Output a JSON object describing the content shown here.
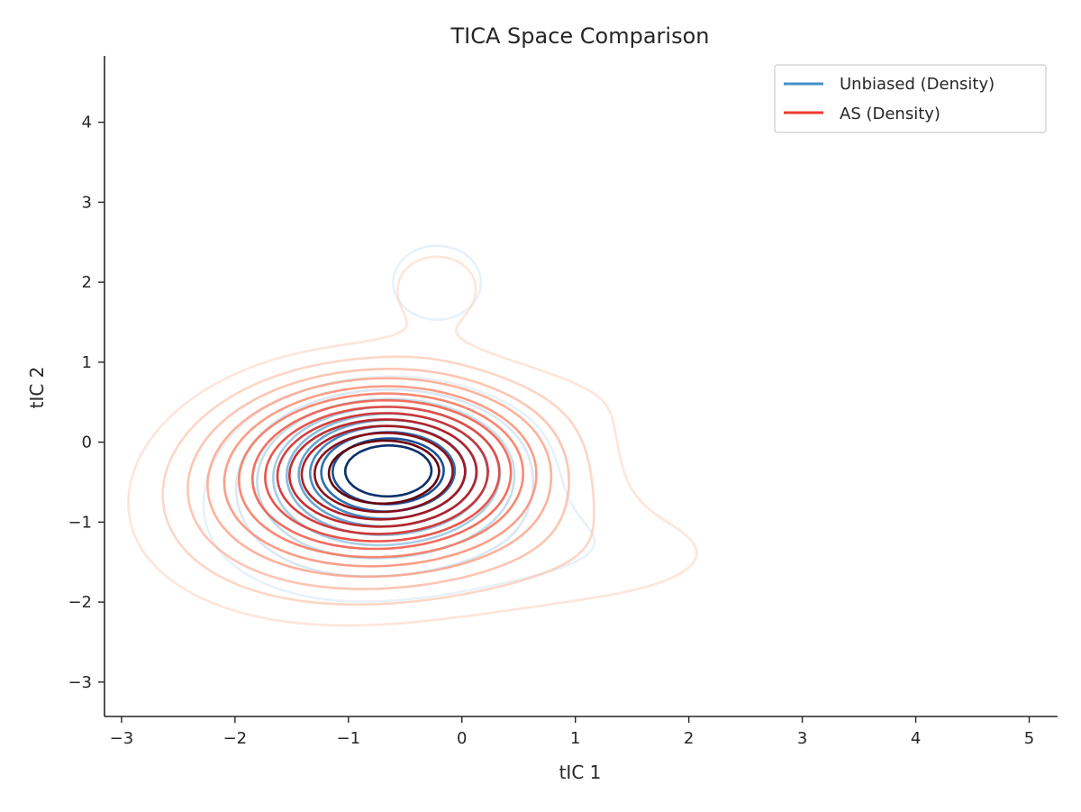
{
  "chart_data": {
    "type": "contour",
    "title": "TICA Space Comparison",
    "xlabel": "tIC 1",
    "ylabel": "tIC 2",
    "xlim": [
      -3.15,
      5.25
    ],
    "ylim": [
      -3.43,
      4.83
    ],
    "xticks": [
      -3,
      -2,
      -1,
      0,
      1,
      2,
      3,
      4,
      5
    ],
    "yticks": [
      -3,
      -2,
      -1,
      0,
      1,
      2,
      3,
      4
    ],
    "grid": false,
    "legend_position": "upper-right",
    "series": [
      {
        "name": "Unbiased (Density)",
        "color": "#4292c6",
        "colormap": "Blues",
        "modes": [
          {
            "x": -0.63,
            "y": -0.32,
            "weight": 1.0,
            "sx": 0.55,
            "sy": 0.45,
            "rho": 0.0
          },
          {
            "x": -0.9,
            "y": -0.75,
            "weight": 0.22,
            "sx": 0.8,
            "sy": 0.7,
            "rho": 0.1
          },
          {
            "x": -0.22,
            "y": 2.0,
            "weight": 0.1,
            "sx": 0.38,
            "sy": 0.45,
            "rho": 0.0
          },
          {
            "x": 1.75,
            "y": 0.7,
            "weight": 0.045,
            "sx": 0.75,
            "sy": 0.5,
            "rho": 0.0
          },
          {
            "x": 0.6,
            "y": -1.3,
            "weight": 0.06,
            "sx": 1.3,
            "sy": 0.55,
            "rho": 0.0
          }
        ]
      },
      {
        "name": "AS (Density)",
        "color": "#ef3b2c",
        "colormap": "Reds",
        "modes": [
          {
            "x": -0.63,
            "y": -0.32,
            "weight": 1.0,
            "sx": 0.75,
            "sy": 0.6,
            "rho": 0.0
          },
          {
            "x": -1.1,
            "y": -0.7,
            "weight": 0.28,
            "sx": 0.95,
            "sy": 0.8,
            "rho": 0.1
          },
          {
            "x": -0.22,
            "y": 1.95,
            "weight": 0.07,
            "sx": 0.4,
            "sy": 0.45,
            "rho": 0.0
          },
          {
            "x": 1.9,
            "y": 0.75,
            "weight": 0.04,
            "sx": 0.85,
            "sy": 0.55,
            "rho": 0.0
          },
          {
            "x": 0.9,
            "y": -1.4,
            "weight": 0.07,
            "sx": 1.4,
            "sy": 0.6,
            "rho": 0.0
          }
        ]
      }
    ]
  }
}
